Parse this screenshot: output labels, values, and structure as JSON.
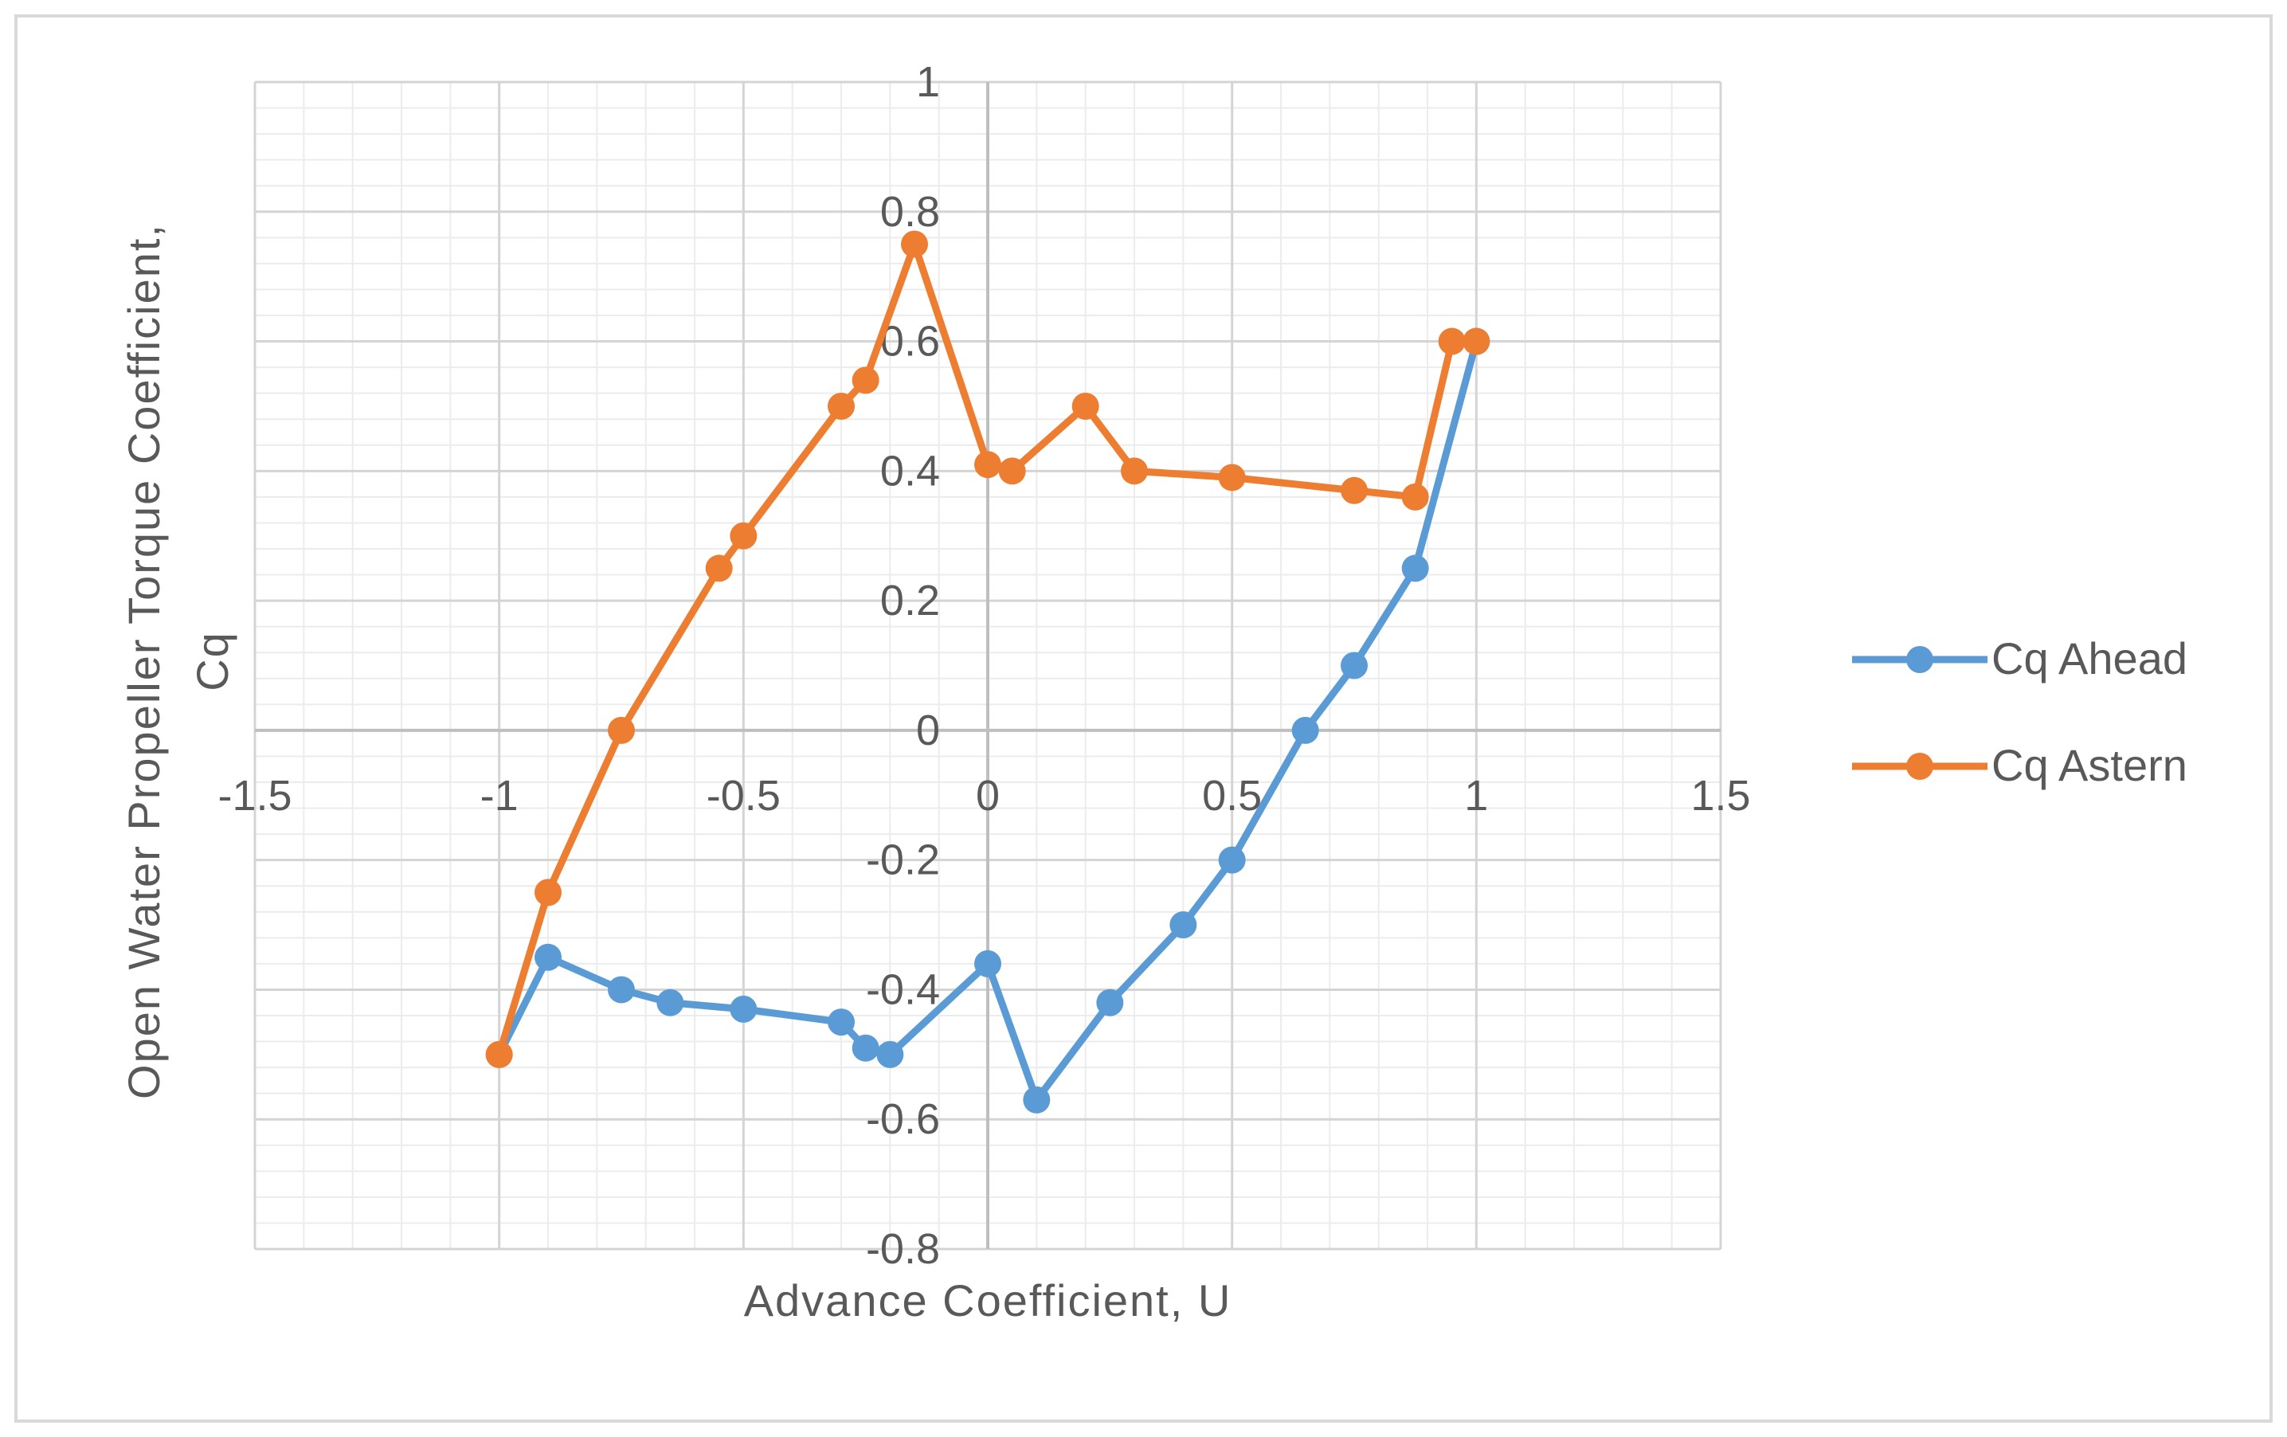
{
  "chart_data": {
    "type": "scatter",
    "title": "",
    "xlabel": "Advance Coefficient, U",
    "ylabel_lines": [
      "Open Water Propeller Torque Coefficient,",
      "Cq"
    ],
    "xlim": [
      -1.5,
      1.5
    ],
    "ylim": [
      -0.8,
      1
    ],
    "x_ticks": [
      -1.5,
      -1,
      -0.5,
      0,
      0.5,
      1,
      1.5
    ],
    "y_ticks": [
      -0.8,
      -0.6,
      -0.4,
      -0.2,
      0,
      0.2,
      0.4,
      0.6,
      0.8,
      1
    ],
    "x_tick_labels": [
      "-1.5",
      "-1",
      "-0.5",
      "0",
      "0.5",
      "1",
      "1.5"
    ],
    "y_tick_labels": [
      "-0.8",
      "-0.6",
      "-0.4",
      "-0.2",
      "0",
      "0.2",
      "0.4",
      "0.6",
      "0.8",
      "1"
    ],
    "grid": true,
    "minor_grid": true,
    "legend_position": "right",
    "series": [
      {
        "name": "Cq Ahead",
        "color": "#5b9bd5",
        "points": [
          [
            -1.0,
            -0.5
          ],
          [
            -0.9,
            -0.35
          ],
          [
            -0.75,
            -0.4
          ],
          [
            -0.65,
            -0.42
          ],
          [
            -0.5,
            -0.43
          ],
          [
            -0.3,
            -0.45
          ],
          [
            -0.25,
            -0.49
          ],
          [
            -0.2,
            -0.5
          ],
          [
            0.0,
            -0.36
          ],
          [
            0.1,
            -0.57
          ],
          [
            0.25,
            -0.42
          ],
          [
            0.4,
            -0.3
          ],
          [
            0.5,
            -0.2
          ],
          [
            0.65,
            0.0
          ],
          [
            0.75,
            0.1
          ],
          [
            0.875,
            0.25
          ],
          [
            1.0,
            0.6
          ]
        ]
      },
      {
        "name": "Cq Astern",
        "color": "#ed7d31",
        "points": [
          [
            -1.0,
            -0.5
          ],
          [
            -0.9,
            -0.25
          ],
          [
            -0.75,
            0.0
          ],
          [
            -0.55,
            0.25
          ],
          [
            -0.5,
            0.3
          ],
          [
            -0.3,
            0.5
          ],
          [
            -0.25,
            0.54
          ],
          [
            -0.15,
            0.75
          ],
          [
            0.0,
            0.41
          ],
          [
            0.05,
            0.4
          ],
          [
            0.2,
            0.5
          ],
          [
            0.3,
            0.4
          ],
          [
            0.5,
            0.39
          ],
          [
            0.75,
            0.37
          ],
          [
            0.875,
            0.36
          ],
          [
            0.95,
            0.6
          ],
          [
            1.0,
            0.6
          ]
        ]
      }
    ]
  }
}
